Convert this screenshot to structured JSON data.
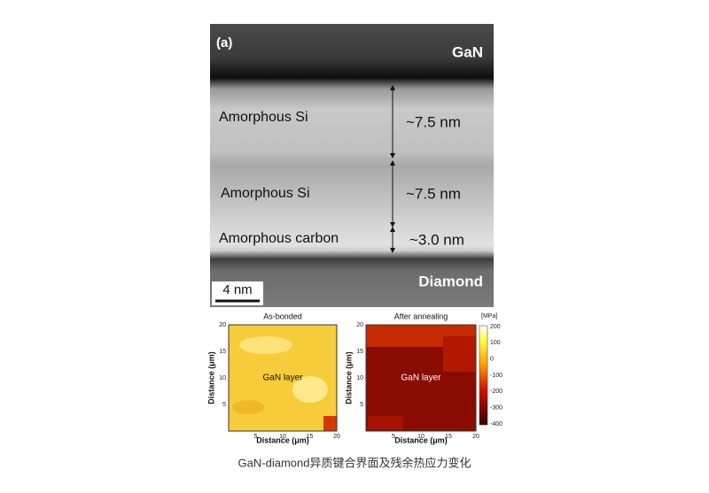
{
  "tem": {
    "panel_label": "(a)",
    "top_layer": "GaN",
    "layers": [
      {
        "label": "Amorphous Si",
        "thickness": "~7.5 nm"
      },
      {
        "label": "Amorphous Si",
        "thickness": "~7.5 nm"
      },
      {
        "label": "Amorphous carbon",
        "thickness": "~3.0 nm"
      }
    ],
    "bottom_layer": "Diamond",
    "scale_bar": "4 nm"
  },
  "maps": [
    {
      "title": "As-bonded",
      "label": "GaN layer",
      "x_label": "Distance (μm)",
      "y_label": "Distance (μm)",
      "x_ticks": [
        5,
        10,
        15,
        20
      ],
      "y_ticks": [
        5,
        10,
        15,
        20
      ]
    },
    {
      "title": "After annealing",
      "label": "GaN layer",
      "x_label": "Distance (μm)",
      "y_label": "Distance (μm)",
      "x_ticks": [
        5,
        10,
        15,
        20
      ],
      "y_ticks": [
        5,
        10,
        15,
        20
      ]
    }
  ],
  "colorbar": {
    "unit": "[MPa]",
    "ticks": [
      200,
      100,
      0,
      -100,
      -200,
      -300,
      -400
    ]
  },
  "caption": "GaN-diamond异质键合界面及残余热应力变化"
}
